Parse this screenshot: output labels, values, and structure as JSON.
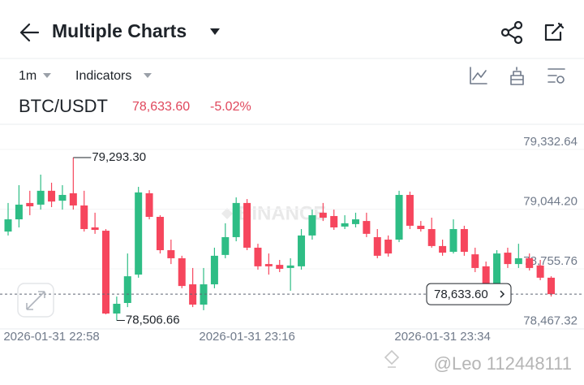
{
  "header": {
    "title": "Multiple Charts"
  },
  "toolbar": {
    "interval": "1m",
    "indicators": "Indicators"
  },
  "symbol": {
    "pair": "BTC/USDT",
    "price": "78,633.60",
    "change": "-5.02%"
  },
  "watermark": {
    "brand": "BINANCE",
    "user": "@Leo 112448111"
  },
  "chart_data": {
    "type": "candlestick",
    "categories": [
      null,
      null,
      null,
      null,
      "2026-01-31 22:58",
      null,
      null,
      null,
      null,
      null,
      null,
      null,
      null,
      null,
      null,
      null,
      null,
      null,
      null,
      null,
      null,
      null,
      "2026-01-31 23:16",
      null,
      null,
      null,
      null,
      null,
      null,
      null,
      null,
      null,
      null,
      null,
      null,
      null,
      null,
      null,
      null,
      null,
      "2026-01-31 23:34",
      null,
      null,
      null,
      null,
      null,
      null,
      null,
      null,
      null,
      null
    ],
    "open": [
      78936,
      78995,
      79074,
      79066,
      79133,
      79085,
      79121,
      79062,
      78956,
      78940,
      78540,
      78591,
      78728,
      79121,
      79007,
      78846,
      78807,
      78681,
      78583,
      78681,
      78823,
      78909,
      79074,
      78858,
      78779,
      78775,
      78760,
      78768,
      78917,
      79027,
      79011,
      78960,
      78972,
      78987,
      78909,
      78897,
      78897,
      79113,
      78964,
      78948,
      78866,
      78838,
      78948,
      78826,
      78768,
      78673,
      78834,
      78779,
      78807,
      78772,
      78713
    ],
    "high": [
      79074,
      79160,
      79133,
      79211,
      79172,
      79160,
      79293.3,
      79133,
      79027,
      78948,
      78622,
      78830,
      79152,
      79136,
      79015,
      78897,
      78819,
      78760,
      78760,
      78858,
      78976,
      79101,
      79093,
      78877,
      78830,
      78799,
      78807,
      78948,
      79042,
      79074,
      79042,
      79015,
      79027,
      79027,
      78948,
      78917,
      79133,
      79129,
      78987,
      79003,
      78897,
      78995,
      78964,
      78858,
      78791,
      78846,
      78858,
      78877,
      78830,
      78799,
      78720
    ],
    "low": [
      78917,
      78956,
      79015,
      79042,
      79054,
      79042,
      79042,
      78936,
      78925,
      78536,
      78506.66,
      78571,
      78713,
      78995,
      78830,
      78779,
      78662,
      78571,
      78556,
      78662,
      78807,
      78889,
      78846,
      78752,
      78728,
      78740,
      78650,
      78752,
      78897,
      78987,
      78944,
      78948,
      78956,
      78909,
      78807,
      78815,
      78885,
      78948,
      78936,
      78858,
      78819,
      78830,
      78819,
      78740,
      78658,
      78662,
      78760,
      78760,
      78748,
      78701,
      78622
    ],
    "close": [
      78995,
      79066,
      79058,
      79133,
      79081,
      79113,
      79062,
      78948,
      78944,
      78540,
      78587,
      78720,
      79125,
      79007,
      78846,
      78807,
      78673,
      78583,
      78681,
      78819,
      78909,
      79074,
      78858,
      78768,
      78768,
      78756,
      78772,
      78917,
      79015,
      79003,
      78956,
      78976,
      78995,
      78925,
      78819,
      78830,
      79113,
      78964,
      78948,
      78866,
      78834,
      78948,
      78838,
      78760,
      78669,
      78830,
      78779,
      78807,
      78760,
      78713,
      78633.6
    ],
    "up_color": "#2ebd85",
    "down_color": "#f6465d",
    "ylim": [
      78465.4,
      79454.3
    ],
    "yticks": [
      {
        "value": 78467.32,
        "label": "78,467.32"
      },
      {
        "value": 78755.76,
        "label": "78,755.76"
      },
      {
        "value": 79044.2,
        "label": "79,044.20"
      },
      {
        "value": 79332.64,
        "label": "79,332.64"
      }
    ],
    "grid": true,
    "max_label": "79,293.30",
    "min_label": "78,506.66",
    "last_price_label": "78,633.60"
  }
}
